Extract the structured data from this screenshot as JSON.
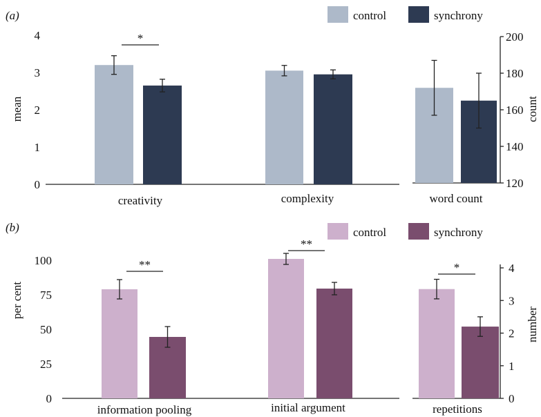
{
  "chart_data": [
    {
      "panel_label": "(a)",
      "type": "bar",
      "legend": {
        "placement": "top-right",
        "entries": [
          {
            "name": "control",
            "color": "#adb9c9"
          },
          {
            "name": "synchrony",
            "color": "#2d3a52"
          }
        ]
      },
      "subcharts": [
        {
          "id": "a-main",
          "ylabel": "mean",
          "ylim": [
            0,
            4
          ],
          "yticks": [
            "0",
            "1",
            "2",
            "3",
            "4"
          ],
          "categories": [
            "creativity",
            "complexity"
          ],
          "series": [
            {
              "name": "control",
              "color": "#adb9c9",
              "values": [
                3.2,
                3.05
              ],
              "errors": [
                0.25,
                0.14
              ]
            },
            {
              "name": "synchrony",
              "color": "#2d3a52",
              "values": [
                2.65,
                2.95
              ],
              "errors": [
                0.17,
                0.12
              ]
            }
          ],
          "significance": [
            {
              "category": 0,
              "label": "*"
            }
          ]
        },
        {
          "id": "a-right",
          "ylabel": "count",
          "ylim": [
            120,
            200
          ],
          "yticks": [
            "120",
            "140",
            "160",
            "180",
            "200"
          ],
          "categories": [
            "word count"
          ],
          "series": [
            {
              "name": "control",
              "color": "#adb9c9",
              "values": [
                172
              ],
              "errors": [
                15
              ]
            },
            {
              "name": "synchrony",
              "color": "#2d3a52",
              "values": [
                165
              ],
              "errors": [
                15
              ]
            }
          ],
          "significance": []
        }
      ]
    },
    {
      "panel_label": "(b)",
      "type": "bar",
      "legend": {
        "placement": "top-right",
        "entries": [
          {
            "name": "control",
            "color": "#cdb0cc"
          },
          {
            "name": "synchrony",
            "color": "#7a4d6e"
          }
        ]
      },
      "subcharts": [
        {
          "id": "b-main",
          "ylabel": "per cent",
          "ylim": [
            0,
            100
          ],
          "yticks": [
            "0",
            "25",
            "50",
            "75",
            "100"
          ],
          "categories": [
            "information pooling",
            "initial argument"
          ],
          "series": [
            {
              "name": "control",
              "color": "#cdb0cc",
              "values": [
                79,
                101
              ],
              "errors": [
                7,
                4
              ]
            },
            {
              "name": "synchrony",
              "color": "#7a4d6e",
              "values": [
                44.5,
                79.5
              ],
              "errors": [
                7.5,
                4.5
              ]
            }
          ],
          "significance": [
            {
              "category": 0,
              "label": "**"
            },
            {
              "category": 1,
              "label": "**"
            }
          ]
        },
        {
          "id": "b-right",
          "ylabel": "number",
          "ylim": [
            0,
            4
          ],
          "yticks": [
            "0",
            "1",
            "2",
            "3",
            "4"
          ],
          "categories": [
            "repetitions"
          ],
          "series": [
            {
              "name": "control",
              "color": "#cdb0cc",
              "values": [
                3.35
              ],
              "errors": [
                0.3
              ]
            },
            {
              "name": "synchrony",
              "color": "#7a4d6e",
              "values": [
                2.2
              ],
              "errors": [
                0.3
              ]
            }
          ],
          "significance": [
            {
              "category": 0,
              "label": "*"
            }
          ]
        }
      ]
    }
  ]
}
